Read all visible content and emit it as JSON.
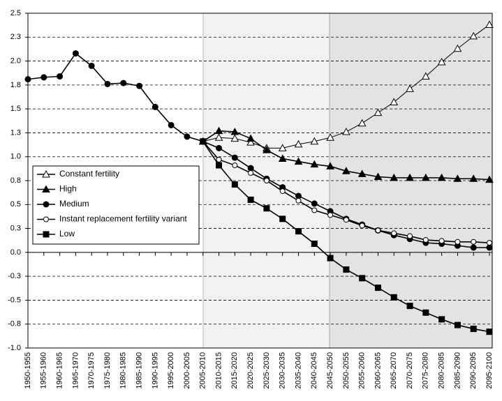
{
  "chart_data": {
    "type": "line",
    "categories": [
      "1950-1955",
      "1955-1960",
      "1960-1965",
      "1965-1970",
      "1970-1975",
      "1975-1980",
      "1980-1985",
      "1985-1990",
      "1990-1995",
      "1995-2000",
      "2000-2005",
      "2005-2010",
      "2010-2015",
      "2015-2020",
      "2020-2025",
      "2025-2030",
      "2030-2035",
      "2035-2040",
      "2040-2045",
      "2045-2050",
      "2050-2055",
      "2055-2060",
      "2060-2065",
      "2065-2070",
      "2070-2075",
      "2075-2080",
      "2080-2085",
      "2085-2090",
      "2090-2095",
      "2095-2100"
    ],
    "ylim": [
      -1.0,
      2.5
    ],
    "yticks": [
      2.5,
      {
        "value": 2.25,
        "label": "2.3"
      },
      {
        "value": 2.0,
        "label": "2.0"
      },
      {
        "value": 1.75,
        "label": "1.8"
      },
      1.5,
      {
        "value": 1.25,
        "label": "1.3"
      },
      {
        "value": 1.0,
        "label": "1.0"
      },
      {
        "value": 0.75,
        "label": "0.8"
      },
      0.5,
      {
        "value": 0.25,
        "label": "0.3"
      },
      {
        "value": 0.0,
        "label": "0.0"
      },
      {
        "value": -0.25,
        "label": "-0.3"
      },
      -0.5,
      {
        "value": -0.75,
        "label": "-0.8"
      },
      {
        "value": -1.0,
        "label": "-1.0"
      }
    ],
    "grid": true,
    "series": [
      {
        "name": "Constant fertility",
        "color": "#000000",
        "marker": "triangle-open",
        "values": [
          null,
          null,
          null,
          null,
          null,
          null,
          null,
          null,
          null,
          null,
          null,
          1.16,
          1.2,
          1.19,
          1.15,
          1.09,
          1.09,
          1.13,
          1.16,
          1.2,
          1.26,
          1.35,
          1.46,
          1.57,
          1.71,
          1.84,
          1.99,
          2.13,
          2.26,
          2.38
        ]
      },
      {
        "name": "High",
        "color": "#000000",
        "marker": "triangle",
        "values": [
          null,
          null,
          null,
          null,
          null,
          null,
          null,
          null,
          null,
          null,
          null,
          1.16,
          1.27,
          1.26,
          1.19,
          1.07,
          0.98,
          0.95,
          0.92,
          0.9,
          0.85,
          0.82,
          0.79,
          0.78,
          0.78,
          0.78,
          0.78,
          0.77,
          0.77,
          0.76
        ]
      },
      {
        "name": "Medium",
        "color": "#000000",
        "marker": "circle",
        "values": [
          1.81,
          1.83,
          1.84,
          2.08,
          1.95,
          1.76,
          1.77,
          1.74,
          1.52,
          1.33,
          1.21,
          1.16,
          1.09,
          0.99,
          0.88,
          0.77,
          0.68,
          0.59,
          0.51,
          0.43,
          0.35,
          0.29,
          0.23,
          0.18,
          0.14,
          0.1,
          0.09,
          0.07,
          0.05,
          0.05
        ]
      },
      {
        "name": "Instant replacement fertility variant",
        "color": "#000000",
        "marker": "circle-open",
        "values": [
          null,
          null,
          null,
          null,
          null,
          null,
          null,
          null,
          null,
          null,
          null,
          1.16,
          0.97,
          0.91,
          0.83,
          0.75,
          0.64,
          0.54,
          0.44,
          0.39,
          0.34,
          0.28,
          0.23,
          0.2,
          0.17,
          0.13,
          0.12,
          0.11,
          0.11,
          0.1
        ]
      },
      {
        "name": "Low",
        "color": "#000000",
        "marker": "square",
        "values": [
          null,
          null,
          null,
          null,
          null,
          null,
          null,
          null,
          null,
          null,
          null,
          1.16,
          0.91,
          0.71,
          0.55,
          0.46,
          0.35,
          0.22,
          0.09,
          -0.06,
          -0.18,
          -0.27,
          -0.37,
          -0.47,
          -0.56,
          -0.63,
          -0.7,
          -0.76,
          -0.8,
          -0.83
        ]
      }
    ]
  }
}
